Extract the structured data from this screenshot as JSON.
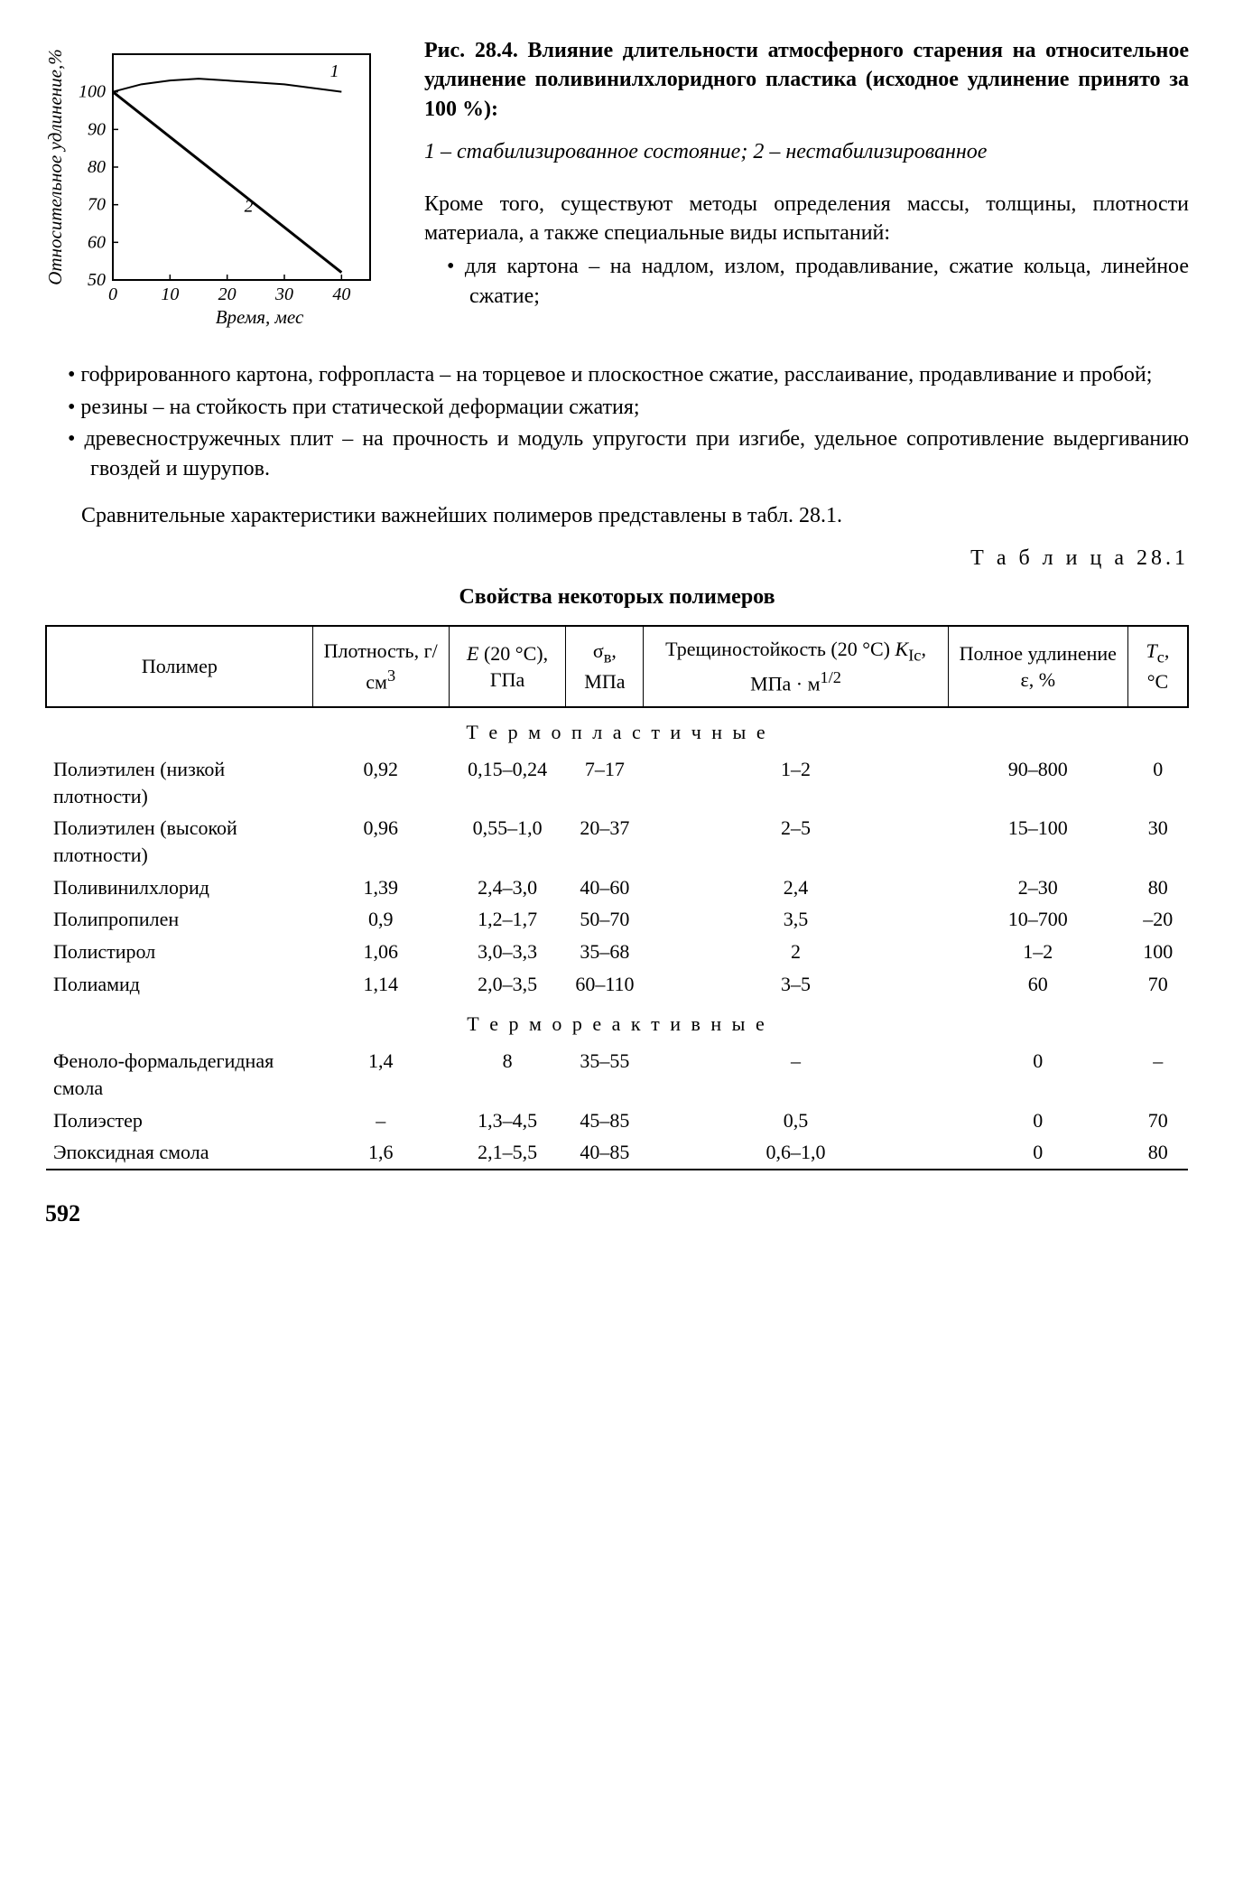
{
  "figure": {
    "caption_bold": "Рис. 28.4. Влияние длительности атмосферного старения на относительное удлинение поливинилхлоридного пластика (исходное удлинение принято за 100 %):",
    "legend": "1 – стабилизированное состояние; 2 – нестабилизированное",
    "chart": {
      "type": "line",
      "xlabel": "Время, мес",
      "ylabel": "Относительное удлинение,%",
      "xlim": [
        0,
        45
      ],
      "ylim": [
        50,
        110
      ],
      "xticks": [
        0,
        10,
        20,
        30,
        40
      ],
      "yticks": [
        50,
        60,
        70,
        80,
        90,
        100
      ],
      "series": [
        {
          "label": "1",
          "points": [
            [
              0,
              100
            ],
            [
              5,
              102
            ],
            [
              10,
              103
            ],
            [
              15,
              103.5
            ],
            [
              20,
              103
            ],
            [
              25,
              102.5
            ],
            [
              30,
              102
            ],
            [
              35,
              101
            ],
            [
              40,
              100
            ]
          ],
          "line_width": 2,
          "color": "#000000"
        },
        {
          "label": "2",
          "points": [
            [
              0,
              100
            ],
            [
              40,
              52
            ]
          ],
          "line_width": 3,
          "color": "#000000"
        }
      ],
      "border_color": "#000000",
      "border_width": 2
    }
  },
  "intro": "Кроме того, существуют методы определения массы, толщины, плотности материала, а также специальные виды испытаний:",
  "bullets": [
    "для картона – на надлом, излом, продавливание, сжатие кольца, линейное сжатие;",
    "гофрированного картона, гофропласта – на торцевое и плоскостное сжатие, расслаивание, продавливание и пробой;",
    "резины – на стойкость при статической деформации сжатия;",
    "древесностружечных плит – на прочность и модуль упругости при изгибе, удельное сопротивление выдергиванию гвоздей и шурупов."
  ],
  "para_table_intro": "Сравнительные характеристики важнейших полимеров представлены в табл. 28.1.",
  "table": {
    "label": "Т а б л и ц а  28.1",
    "title": "Свойства некоторых полимеров",
    "columns": [
      "Полимер",
      "Плотность, г/см³",
      "E (20 °C), ГПа",
      "σᵥ, МПа",
      "Трещиностойкость (20 °C) K_Ic, МПа · м^1/2",
      "Полное удлинение ε, %",
      "T_c, °C"
    ],
    "sections": [
      {
        "heading": "Т е р м о п л а с т и ч н ы е",
        "rows": [
          [
            "Полиэтилен (низкой плотности)",
            "0,92",
            "0,15–0,24",
            "7–17",
            "1–2",
            "90–800",
            "0"
          ],
          [
            "Полиэтилен (высокой плотности)",
            "0,96",
            "0,55–1,0",
            "20–37",
            "2–5",
            "15–100",
            "30"
          ],
          [
            "Поливинилхлорид",
            "1,39",
            "2,4–3,0",
            "40–60",
            "2,4",
            "2–30",
            "80"
          ],
          [
            "Полипропилен",
            "0,9",
            "1,2–1,7",
            "50–70",
            "3,5",
            "10–700",
            "–20"
          ],
          [
            "Полистирол",
            "1,06",
            "3,0–3,3",
            "35–68",
            "2",
            "1–2",
            "100"
          ],
          [
            "Полиамид",
            "1,14",
            "2,0–3,5",
            "60–110",
            "3–5",
            "60",
            "70"
          ]
        ]
      },
      {
        "heading": "Т е р м о р е а к т и в н ы е",
        "rows": [
          [
            "Феноло-формальдегидная смола",
            "1,4",
            "8",
            "35–55",
            "–",
            "0",
            "–"
          ],
          [
            "Полиэстер",
            "–",
            "1,3–4,5",
            "45–85",
            "0,5",
            "0",
            "70"
          ],
          [
            "Эпоксидная смола",
            "1,6",
            "2,1–5,5",
            "40–85",
            "0,6–1,0",
            "0",
            "80"
          ]
        ]
      }
    ]
  },
  "page_number": "592"
}
